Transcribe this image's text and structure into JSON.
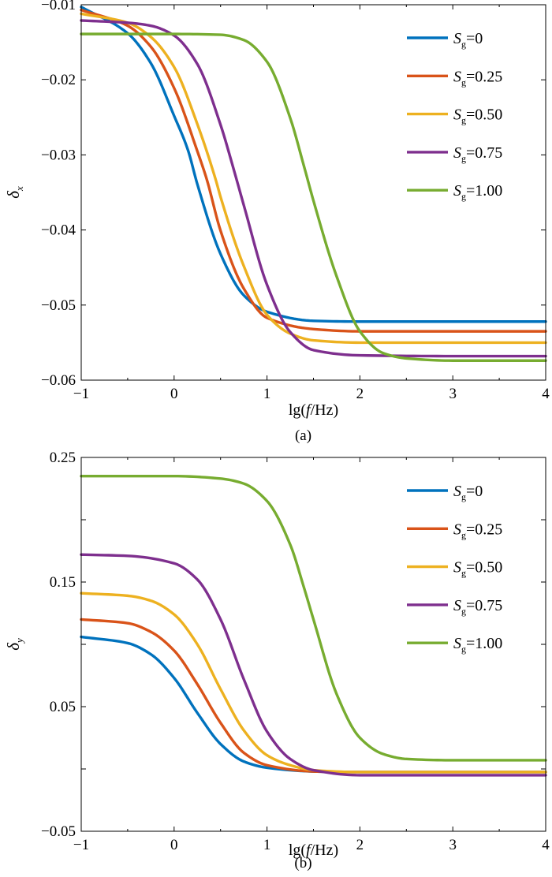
{
  "chart_data": [
    {
      "type": "line",
      "panel": "a",
      "caption": "(a)",
      "ylabel": "δ",
      "ylabel_subscript": "x",
      "xlabel_pre": "lg(",
      "xlabel_italic": "f",
      "xlabel_post": "/Hz)",
      "xlim": [
        -1,
        4
      ],
      "ylim": [
        -0.06,
        -0.01
      ],
      "xticks": [
        -1,
        0,
        1,
        2,
        3,
        4
      ],
      "xtick_labels": [
        "−1",
        "0",
        "1",
        "2",
        "3",
        "4"
      ],
      "yticks": [
        -0.06,
        -0.05,
        -0.04,
        -0.03,
        -0.02,
        -0.01
      ],
      "ytick_labels": [
        "−0.06",
        "−0.05",
        "−0.04",
        "−0.03",
        "−0.02",
        "−0.01"
      ],
      "legend_position": "top-right",
      "series": [
        {
          "name": "S_g=0",
          "label_main": "S",
          "label_sub": "g",
          "label_value": "=0",
          "color": "#0072BD",
          "x": [
            -1,
            -0.5,
            -0.25,
            0,
            0.15,
            0.25,
            0.5,
            0.75,
            1,
            1.5,
            2,
            3,
            4
          ],
          "y": [
            -0.0103,
            -0.0138,
            -0.0178,
            -0.0248,
            -0.0294,
            -0.0339,
            -0.0432,
            -0.0487,
            -0.0509,
            -0.0521,
            -0.0522,
            -0.0522,
            -0.0522
          ]
        },
        {
          "name": "S_g=0.25",
          "label_main": "S",
          "label_sub": "g",
          "label_value": "=0.25",
          "color": "#D95319",
          "x": [
            -1,
            -0.5,
            -0.25,
            0,
            0.25,
            0.35,
            0.5,
            0.75,
            1,
            1.5,
            2,
            3,
            4
          ],
          "y": [
            -0.0107,
            -0.0128,
            -0.0156,
            -0.0211,
            -0.0295,
            -0.0332,
            -0.0401,
            -0.0478,
            -0.0517,
            -0.0532,
            -0.0535,
            -0.0535,
            -0.0535
          ]
        },
        {
          "name": "S_g=0.50",
          "label_main": "S",
          "label_sub": "g",
          "label_value": "=0.50",
          "color": "#EDB120",
          "x": [
            -1,
            -0.5,
            -0.25,
            0,
            0.25,
            0.45,
            0.5,
            0.75,
            1,
            1.25,
            1.5,
            2,
            3,
            4
          ],
          "y": [
            -0.0112,
            -0.0124,
            -0.0143,
            -0.0183,
            -0.0259,
            -0.0334,
            -0.0356,
            -0.0448,
            -0.0513,
            -0.0538,
            -0.0547,
            -0.055,
            -0.055,
            -0.055
          ]
        },
        {
          "name": "S_g=0.75",
          "label_main": "S",
          "label_sub": "g",
          "label_value": "=0.75",
          "color": "#7E2F8E",
          "x": [
            -1,
            -0.5,
            -0.25,
            0,
            0.25,
            0.5,
            0.65,
            0.75,
            1,
            1.25,
            1.5,
            2,
            3,
            4
          ],
          "y": [
            -0.0121,
            -0.0124,
            -0.0128,
            -0.0141,
            -0.0179,
            -0.026,
            -0.0323,
            -0.0367,
            -0.0473,
            -0.0536,
            -0.056,
            -0.0567,
            -0.0568,
            -0.0568
          ]
        },
        {
          "name": "S_g=1.00",
          "label_main": "S",
          "label_sub": "g",
          "label_value": "=1.00",
          "color": "#77AC30",
          "x": [
            -1,
            0,
            0.5,
            0.75,
            1,
            1.25,
            1.4,
            1.5,
            1.75,
            2,
            2.25,
            2.5,
            3,
            4
          ],
          "y": [
            -0.0139,
            -0.0139,
            -0.014,
            -0.0147,
            -0.0176,
            -0.0251,
            -0.0316,
            -0.0361,
            -0.0462,
            -0.0535,
            -0.0564,
            -0.0571,
            -0.0574,
            -0.0574
          ]
        }
      ]
    },
    {
      "type": "line",
      "panel": "b",
      "caption": "(b)",
      "ylabel": "δ",
      "ylabel_subscript": "y",
      "xlabel_pre": "lg(",
      "xlabel_italic": "f",
      "xlabel_post": "/Hz)",
      "xlim": [
        -1,
        4
      ],
      "ylim": [
        -0.05,
        0.25
      ],
      "xticks": [
        -1,
        0,
        1,
        2,
        3,
        4
      ],
      "xtick_labels": [
        "−1",
        "0",
        "1",
        "2",
        "3",
        "4"
      ],
      "yticks": [
        -0.05,
        0.05,
        0.15,
        0.25
      ],
      "ytick_labels": [
        "−0.05",
        "0.05",
        "0.15",
        "0.25"
      ],
      "minor_yticks": [
        0.0,
        0.1,
        0.2
      ],
      "legend_position": "top-right",
      "series": [
        {
          "name": "S_g=0",
          "label_main": "S",
          "label_sub": "g",
          "label_value": "=0",
          "color": "#0072BD",
          "x": [
            -1,
            -0.5,
            -0.25,
            0,
            0.25,
            0.5,
            0.75,
            1,
            1.5,
            2,
            3,
            4
          ],
          "y": [
            0.106,
            0.101,
            0.092,
            0.073,
            0.045,
            0.02,
            0.006,
            0.001,
            -0.002,
            -0.0025,
            -0.0025,
            -0.0025
          ]
        },
        {
          "name": "S_g=0.25",
          "label_main": "S",
          "label_sub": "g",
          "label_value": "=0.25",
          "color": "#D95319",
          "x": [
            -1,
            -0.5,
            -0.25,
            0,
            0.25,
            0.5,
            0.75,
            1,
            1.5,
            2,
            3,
            4
          ],
          "y": [
            0.12,
            0.117,
            0.11,
            0.095,
            0.068,
            0.037,
            0.013,
            0.003,
            -0.002,
            -0.0025,
            -0.0025,
            -0.0025
          ]
        },
        {
          "name": "S_g=0.50",
          "label_main": "S",
          "label_sub": "g",
          "label_value": "=0.50",
          "color": "#EDB120",
          "x": [
            -1,
            -0.5,
            -0.25,
            0,
            0.25,
            0.5,
            0.75,
            1,
            1.25,
            1.5,
            2,
            3,
            4
          ],
          "y": [
            0.141,
            0.139,
            0.135,
            0.124,
            0.1,
            0.064,
            0.031,
            0.011,
            0.003,
            -0.001,
            -0.0025,
            -0.0025,
            -0.0025
          ]
        },
        {
          "name": "S_g=0.75",
          "label_main": "S",
          "label_sub": "g",
          "label_value": "=0.75",
          "color": "#7E2F8E",
          "x": [
            -1,
            -0.5,
            0,
            0.25,
            0.5,
            0.75,
            1,
            1.25,
            1.5,
            2,
            3,
            4
          ],
          "y": [
            0.172,
            0.171,
            0.165,
            0.152,
            0.12,
            0.072,
            0.03,
            0.008,
            -0.001,
            -0.005,
            -0.005,
            -0.005
          ]
        },
        {
          "name": "S_g=1.00",
          "label_main": "S",
          "label_sub": "g",
          "label_value": "=1.00",
          "color": "#77AC30",
          "x": [
            -1,
            0,
            0.5,
            0.75,
            1,
            1.25,
            1.4,
            1.5,
            1.75,
            2,
            2.25,
            2.5,
            3,
            4
          ],
          "y": [
            0.235,
            0.235,
            0.233,
            0.229,
            0.215,
            0.18,
            0.145,
            0.12,
            0.06,
            0.025,
            0.012,
            0.008,
            0.007,
            0.007
          ]
        }
      ]
    }
  ]
}
